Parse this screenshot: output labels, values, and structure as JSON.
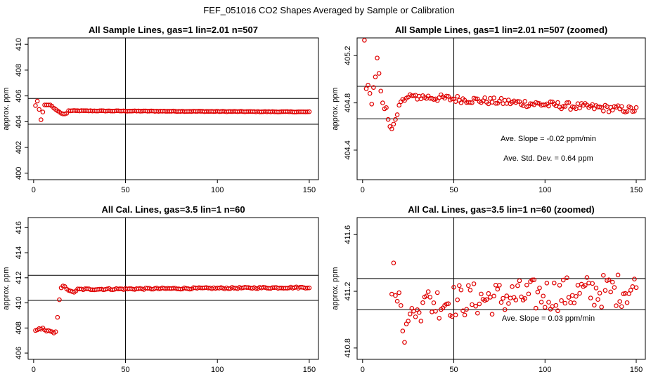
{
  "figure_title": "FEF_051016  CO2 Shapes Averaged by Sample or Calibration",
  "chart_data": [
    {
      "type": "scatter",
      "title": "All Sample Lines, gas=1 lin=2.01 n=507",
      "xlabel": "",
      "ylabel": "approx. ppm",
      "xlim": [
        -3,
        155
      ],
      "ylim": [
        399.5,
        410.5
      ],
      "xticks": [
        0,
        50,
        100,
        150
      ],
      "yticks": [
        400,
        402,
        404,
        406,
        408,
        410
      ],
      "vline": 50,
      "hlines": [
        403.8,
        405.8
      ],
      "color": "#e00000",
      "annotations": [],
      "series": [
        {
          "x": [],
          "y": []
        }
      ]
    },
    {
      "type": "scatter",
      "title": "All Sample Lines, gas=1 lin=2.01 n=507 (zoomed)",
      "xlabel": "",
      "ylabel": "approx. ppm",
      "xlim": [
        -3,
        155
      ],
      "ylim": [
        404.15,
        405.35
      ],
      "xticks": [
        0,
        50,
        100,
        150
      ],
      "yticks": [
        404.4,
        404.8,
        405.2
      ],
      "vline": 50,
      "hlines": [
        404.665,
        404.94
      ],
      "color": "#e00000",
      "annotations": [
        "Ave. Slope =  -0.02  ppm/min",
        "Ave. Std. Dev. =  0.64  ppm"
      ],
      "series": [
        {
          "x": [],
          "y": []
        }
      ]
    },
    {
      "type": "scatter",
      "title": "All Cal. Lines, gas=3.5 lin=1 n=60",
      "xlabel": "",
      "ylabel": "approx. ppm",
      "xlim": [
        -3,
        155
      ],
      "ylim": [
        405.5,
        416.8
      ],
      "xticks": [
        0,
        50,
        100,
        150
      ],
      "yticks": [
        406,
        408,
        410,
        412,
        414,
        416
      ],
      "vline": 50,
      "hlines": [
        410.2,
        412.2
      ],
      "color": "#e00000",
      "annotations": [],
      "series": [
        {
          "x": [],
          "y": []
        }
      ]
    },
    {
      "type": "scatter",
      "title": "All Cal. Lines, gas=3.5 lin=1 n=60 (zoomed)",
      "xlabel": "",
      "ylabel": "approx. ppm",
      "xlim": [
        -3,
        155
      ],
      "ylim": [
        410.72,
        411.72
      ],
      "xticks": [
        0,
        50,
        100,
        150
      ],
      "yticks": [
        410.8,
        411.2,
        411.6
      ],
      "vline": 50,
      "hlines": [
        411.07,
        411.29
      ],
      "color": "#e00000",
      "annotations": [
        "Ave. Slope =  0.03  ppm/min"
      ],
      "series": [
        {
          "x": [],
          "y": []
        }
      ]
    }
  ]
}
